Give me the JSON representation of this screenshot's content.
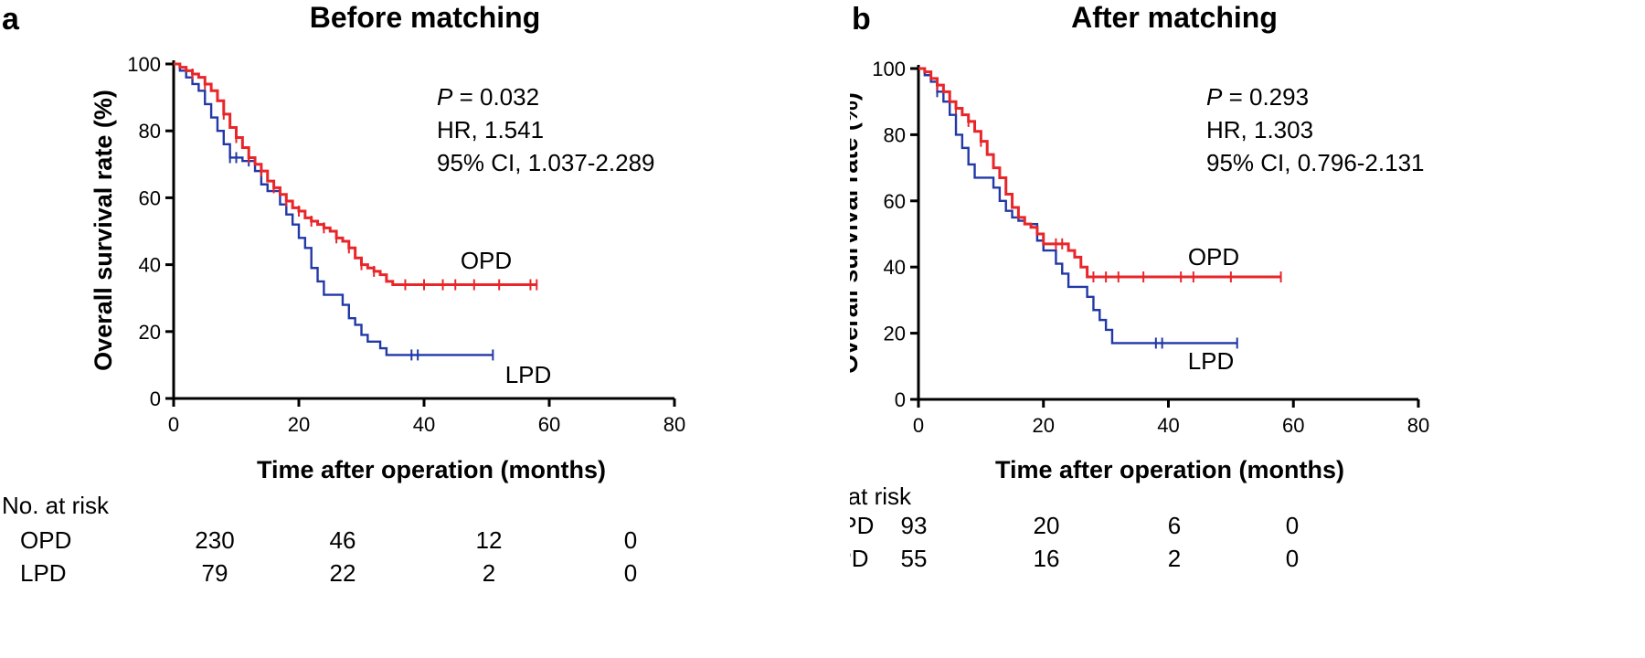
{
  "chart_data": [
    {
      "panel_letter": "a",
      "type": "line",
      "title": "Before matching",
      "xlabel": "Time after operation (months)",
      "ylabel": "Overall survival rate (%)",
      "xlim": [
        0,
        80
      ],
      "ylim": [
        0,
        100
      ],
      "x_ticks": [
        "0",
        "20",
        "40",
        "60",
        "80"
      ],
      "y_ticks": [
        "0",
        "20",
        "40",
        "60",
        "80",
        "100"
      ],
      "stats": {
        "p_label": "P",
        "p_value": "= 0.032",
        "hr": "HR, 1.541",
        "ci": "95% CI, 1.037-2.289"
      },
      "series": [
        {
          "name": "OPD",
          "color": "#e8262a",
          "steps": [
            [
              0,
              100
            ],
            [
              1,
              99
            ],
            [
              2,
              98
            ],
            [
              3,
              97
            ],
            [
              4,
              96
            ],
            [
              5,
              94
            ],
            [
              6,
              92
            ],
            [
              7,
              89
            ],
            [
              8,
              85
            ],
            [
              9,
              81
            ],
            [
              10,
              78
            ],
            [
              11,
              75
            ],
            [
              12,
              72
            ],
            [
              13,
              70
            ],
            [
              14,
              68
            ],
            [
              15,
              65
            ],
            [
              16,
              63
            ],
            [
              17,
              61
            ],
            [
              18,
              59
            ],
            [
              19,
              57
            ],
            [
              20,
              56
            ],
            [
              21,
              54
            ],
            [
              22,
              53
            ],
            [
              23,
              52
            ],
            [
              24,
              51
            ],
            [
              25,
              50
            ],
            [
              26,
              48
            ],
            [
              27,
              47
            ],
            [
              28,
              45
            ],
            [
              29,
              42
            ],
            [
              30,
              40
            ],
            [
              31,
              39
            ],
            [
              32,
              38
            ],
            [
              33,
              37
            ],
            [
              34,
              35
            ],
            [
              35,
              34
            ],
            [
              58,
              34
            ]
          ],
          "censors": [
            [
              3,
              97
            ],
            [
              5,
              94
            ],
            [
              8,
              85
            ],
            [
              10,
              78
            ],
            [
              12,
              72
            ],
            [
              14,
              68
            ],
            [
              16,
              63
            ],
            [
              18,
              59
            ],
            [
              20,
              56
            ],
            [
              22,
              53
            ],
            [
              24,
              51
            ],
            [
              26,
              48
            ],
            [
              28,
              45
            ],
            [
              30,
              40
            ],
            [
              32,
              38
            ],
            [
              37,
              34
            ],
            [
              40,
              34
            ],
            [
              43,
              34
            ],
            [
              45,
              34
            ],
            [
              48,
              34
            ],
            [
              52,
              34
            ],
            [
              57,
              34
            ],
            [
              58,
              34
            ]
          ]
        },
        {
          "name": "LPD",
          "color": "#2238a6",
          "steps": [
            [
              0,
              100
            ],
            [
              1,
              98
            ],
            [
              2,
              96
            ],
            [
              3,
              94
            ],
            [
              4,
              92
            ],
            [
              5,
              88
            ],
            [
              6,
              84
            ],
            [
              7,
              80
            ],
            [
              8,
              76
            ],
            [
              9,
              72
            ],
            [
              11,
              71
            ],
            [
              13,
              68
            ],
            [
              14,
              64
            ],
            [
              15,
              62
            ],
            [
              17,
              58
            ],
            [
              18,
              55
            ],
            [
              19,
              52
            ],
            [
              20,
              48
            ],
            [
              21,
              45
            ],
            [
              22,
              39
            ],
            [
              23,
              35
            ],
            [
              24,
              31
            ],
            [
              27,
              28
            ],
            [
              28,
              24
            ],
            [
              29,
              22
            ],
            [
              30,
              19
            ],
            [
              31,
              17
            ],
            [
              33,
              15
            ],
            [
              34,
              13
            ],
            [
              51,
              13
            ]
          ],
          "censors": [
            [
              9,
              72
            ],
            [
              10,
              72
            ],
            [
              12,
              71
            ],
            [
              38,
              13
            ],
            [
              39,
              13
            ],
            [
              51,
              13
            ]
          ]
        }
      ],
      "series_labels": [
        "OPD",
        "LPD"
      ],
      "risk_table": {
        "header": "No. at risk",
        "rows": [
          {
            "label": "OPD",
            "values": [
              "230",
              "46",
              "12",
              "0"
            ]
          },
          {
            "label": "LPD",
            "values": [
              "79",
              "22",
              "2",
              "0"
            ]
          }
        ]
      }
    },
    {
      "panel_letter": "b",
      "type": "line",
      "title": "After matching",
      "xlabel": "Time after operation (months)",
      "ylabel": "Overall survival rate (%)",
      "xlim": [
        0,
        80
      ],
      "ylim": [
        0,
        100
      ],
      "x_ticks": [
        "0",
        "20",
        "40",
        "60",
        "80"
      ],
      "y_ticks": [
        "0",
        "20",
        "40",
        "60",
        "80",
        "100"
      ],
      "stats": {
        "p_label": "P",
        "p_value": "= 0.293",
        "hr": "HR, 1.303",
        "ci": "95% CI, 0.796-2.131"
      },
      "series": [
        {
          "name": "OPD",
          "color": "#e8262a",
          "steps": [
            [
              0,
              100
            ],
            [
              1,
              99
            ],
            [
              2,
              97
            ],
            [
              3,
              95
            ],
            [
              4,
              93
            ],
            [
              5,
              90
            ],
            [
              6,
              88
            ],
            [
              7,
              86
            ],
            [
              8,
              84
            ],
            [
              9,
              81
            ],
            [
              10,
              78
            ],
            [
              11,
              74
            ],
            [
              12,
              70
            ],
            [
              13,
              67
            ],
            [
              14,
              62
            ],
            [
              15,
              58
            ],
            [
              16,
              55
            ],
            [
              17,
              53
            ],
            [
              18,
              52
            ],
            [
              19,
              50
            ],
            [
              20,
              47
            ],
            [
              24,
              45
            ],
            [
              25,
              43
            ],
            [
              26,
              40
            ],
            [
              27,
              37
            ],
            [
              58,
              37
            ]
          ],
          "censors": [
            [
              3,
              95
            ],
            [
              6,
              88
            ],
            [
              8,
              84
            ],
            [
              10,
              78
            ],
            [
              22,
              47
            ],
            [
              23,
              47
            ],
            [
              28,
              37
            ],
            [
              30,
              37
            ],
            [
              32,
              37
            ],
            [
              36,
              37
            ],
            [
              42,
              37
            ],
            [
              44,
              37
            ],
            [
              50,
              37
            ],
            [
              58,
              37
            ]
          ]
        },
        {
          "name": "LPD",
          "color": "#2238a6",
          "steps": [
            [
              0,
              100
            ],
            [
              1,
              98
            ],
            [
              2,
              96
            ],
            [
              3,
              93
            ],
            [
              4,
              90
            ],
            [
              5,
              86
            ],
            [
              6,
              80
            ],
            [
              7,
              76
            ],
            [
              8,
              71
            ],
            [
              9,
              67
            ],
            [
              12,
              64
            ],
            [
              13,
              60
            ],
            [
              14,
              57
            ],
            [
              15,
              55
            ],
            [
              16,
              54
            ],
            [
              17,
              53
            ],
            [
              19,
              48
            ],
            [
              20,
              45
            ],
            [
              22,
              41
            ],
            [
              23,
              38
            ],
            [
              24,
              34
            ],
            [
              27,
              31
            ],
            [
              28,
              27
            ],
            [
              29,
              24
            ],
            [
              30,
              21
            ],
            [
              31,
              17
            ],
            [
              51,
              17
            ]
          ],
          "censors": [
            [
              3,
              93
            ],
            [
              38,
              17
            ],
            [
              39,
              17
            ],
            [
              51,
              17
            ]
          ]
        }
      ],
      "series_labels": [
        "OPD",
        "LPD"
      ],
      "risk_table": {
        "header": "No. at risk",
        "rows": [
          {
            "label": "OPD",
            "values": [
              "93",
              "20",
              "6",
              "0"
            ]
          },
          {
            "label": "LPD",
            "values": [
              "55",
              "16",
              "2",
              "0"
            ]
          }
        ]
      }
    }
  ]
}
